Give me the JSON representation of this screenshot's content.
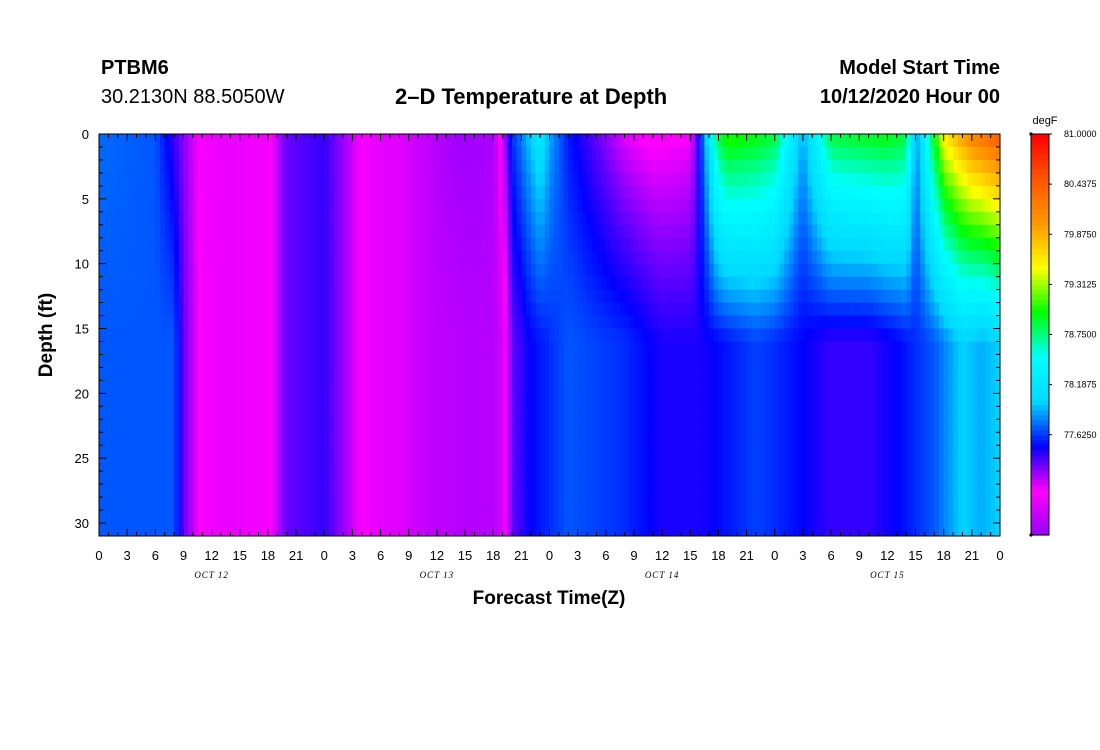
{
  "header": {
    "station": "PTBM6",
    "coordinates": "30.2130N 88.5050W",
    "title": "2–D Temperature at Depth",
    "start_label": "Model Start Time",
    "start_value": "10/12/2020 Hour 00"
  },
  "chart_data": {
    "type": "heatmap",
    "title": "2–D Temperature at Depth",
    "xlabel": "Forecast Time(Z)",
    "ylabel": "Depth (ft)",
    "xlim": [
      0,
      96
    ],
    "ylim": [
      0,
      31
    ],
    "y_inverted": true,
    "x_ticks": [
      0,
      3,
      6,
      9,
      12,
      15,
      18,
      21,
      24,
      27,
      30,
      33,
      36,
      39,
      42,
      45,
      48,
      51,
      54,
      57,
      60,
      63,
      66,
      69,
      72,
      75,
      78,
      81,
      84,
      87,
      90,
      93,
      96
    ],
    "x_tick_labels": [
      "0",
      "3",
      "6",
      "9",
      "12",
      "15",
      "18",
      "21",
      "0",
      "3",
      "6",
      "9",
      "12",
      "15",
      "18",
      "21",
      "0",
      "3",
      "6",
      "9",
      "12",
      "15",
      "18",
      "21",
      "0",
      "3",
      "6",
      "9",
      "12",
      "15",
      "18",
      "21",
      "0"
    ],
    "date_labels": [
      {
        "text": "OCT 12",
        "at_hour": 12
      },
      {
        "text": "OCT 13",
        "at_hour": 36
      },
      {
        "text": "OCT 14",
        "at_hour": 60
      },
      {
        "text": "OCT 15",
        "at_hour": 84
      }
    ],
    "y_ticks": [
      0,
      5,
      10,
      15,
      20,
      25,
      30
    ],
    "y_tick_labels": [
      "0",
      "5",
      "10",
      "15",
      "20",
      "25",
      "30"
    ],
    "colorbar": {
      "unit": "degF",
      "min": 76.5,
      "max": 81.0,
      "labels": [
        "81.0000",
        "80.4375",
        "79.8750",
        "79.3125",
        "78.7500",
        "78.1875",
        "77.6250"
      ],
      "label_values": [
        81.0,
        80.4375,
        79.875,
        79.3125,
        78.75,
        78.1875,
        77.625
      ],
      "stops": [
        "#9600ff",
        "#ff00ff",
        "#0000ff",
        "#00d8ff",
        "#00ffff",
        "#00ff00",
        "#ffff00",
        "#ff9900",
        "#ff5500",
        "#ff0000"
      ]
    },
    "series_surface": {
      "depth_ft": 0,
      "hours": [
        0,
        6,
        8.5,
        11,
        14,
        18,
        20,
        24,
        29,
        32,
        35,
        38,
        40,
        42,
        44,
        47,
        48,
        50,
        53,
        56,
        59,
        63,
        64,
        66,
        67,
        70,
        72,
        74,
        75,
        78,
        84,
        86,
        87,
        90,
        93,
        96
      ],
      "temps_degF": [
        77.75,
        77.7,
        77.3,
        76.95,
        76.9,
        76.95,
        77.3,
        77.4,
        76.9,
        76.85,
        76.7,
        76.55,
        76.55,
        76.6,
        77.6,
        78.2,
        77.9,
        77.55,
        77.3,
        77.05,
        76.95,
        77.0,
        77.5,
        78.9,
        79.1,
        79.0,
        78.9,
        78.2,
        77.9,
        78.9,
        79.0,
        78.9,
        77.8,
        79.6,
        80.2,
        80.5
      ]
    },
    "series_bottom": {
      "depth_ft": 31,
      "hours": [
        0,
        8,
        9,
        11,
        14,
        18,
        20,
        24,
        29,
        32,
        35,
        40,
        42,
        43,
        44,
        46,
        48,
        50,
        56,
        60,
        64,
        70,
        72,
        78,
        82,
        85,
        87,
        89,
        90,
        92,
        94,
        96
      ],
      "temps_degF": [
        77.7,
        77.7,
        77.3,
        76.95,
        76.9,
        76.95,
        77.3,
        77.4,
        76.9,
        76.85,
        76.7,
        76.65,
        76.65,
        76.8,
        77.3,
        77.5,
        77.6,
        77.7,
        77.6,
        77.45,
        77.45,
        77.65,
        77.6,
        77.4,
        77.4,
        77.5,
        77.6,
        77.7,
        77.8,
        78.0,
        77.9,
        78.0
      ]
    }
  }
}
